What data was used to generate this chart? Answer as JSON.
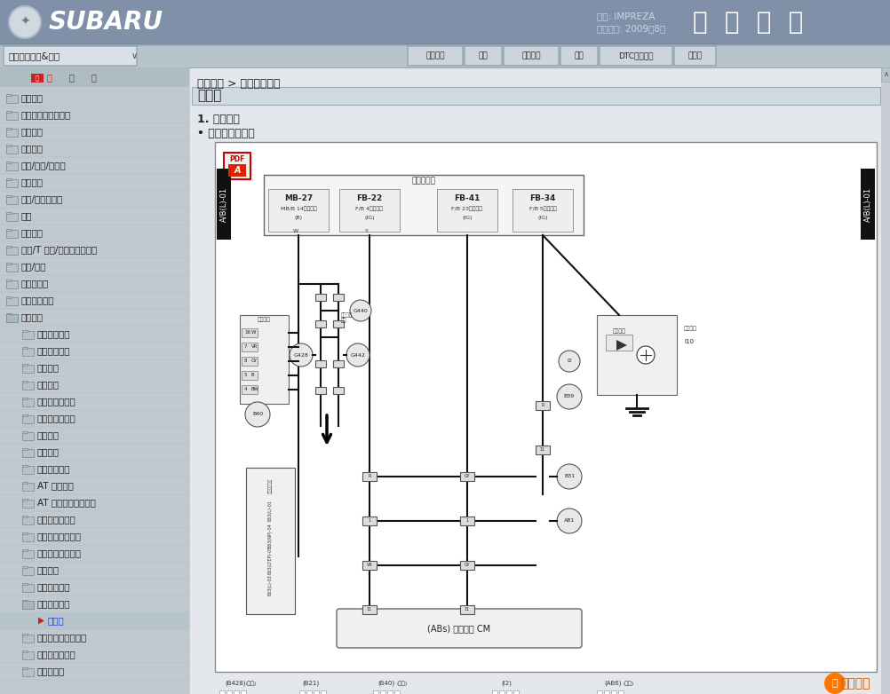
{
  "header_bg_top": "#7a8fa8",
  "header_bg_bot": "#5a6f88",
  "subaru_text": "SUBARU",
  "car_model_label": "车型: IMPREZA",
  "date_label": "发行日期: 2009年8月",
  "title_right": "维 修 手 册",
  "nav_top_label": "车身、驾驶室&配件",
  "nav_buttons": [
    "车型选择",
    "首页",
    "视图目录",
    "索引",
    "DTC编码检索",
    "布线图"
  ],
  "sidebar_items": [
    [
      "照明系统",
      0,
      false,
      false
    ],
    [
      "雨刮器和清洗器系统",
      0,
      false,
      false
    ],
    [
      "娱乐系统",
      0,
      false,
      false
    ],
    [
      "通讯系统",
      0,
      false,
      false
    ],
    [
      "玻璃/车窗/后视镜",
      0,
      false,
      false
    ],
    [
      "车身结构",
      0,
      false,
      false
    ],
    [
      "仪表/驾驶员信息",
      0,
      false,
      false
    ],
    [
      "座椅",
      0,
      false,
      false
    ],
    [
      "安全和锁",
      0,
      false,
      false
    ],
    [
      "天窗/T 型顶/活动顶（天窗）",
      0,
      false,
      false
    ],
    [
      "外饰/内饰",
      0,
      false,
      false
    ],
    [
      "外车身镶板",
      0,
      false,
      false
    ],
    [
      "巡航控制系统",
      0,
      false,
      false
    ],
    [
      "电路系统",
      0,
      true,
      false
    ],
    [
      "基本诊断程序",
      1,
      false,
      false
    ],
    [
      "工作注意事项",
      1,
      false,
      false
    ],
    [
      "电源电路",
      1,
      false,
      false
    ],
    [
      "接地电路",
      1,
      false,
      false
    ],
    [
      "发动机电气系统",
      1,
      false,
      false
    ],
    [
      "散热器风扇系统",
      1,
      false,
      false
    ],
    [
      "充电系统",
      1,
      false,
      false
    ],
    [
      "起动系统",
      1,
      false,
      false
    ],
    [
      "按钮启动系统",
      1,
      false,
      false
    ],
    [
      "AT 控制系统",
      1,
      false,
      false
    ],
    [
      "AT 换档锁止控制系统",
      1,
      false,
      false
    ],
    [
      "防抱死制动系统",
      1,
      false,
      false
    ],
    [
      "车辆动态控制系统",
      1,
      false,
      false
    ],
    [
      "电动动力转向系统",
      1,
      false,
      false
    ],
    [
      "空调系统",
      1,
      false,
      false
    ],
    [
      "电动座椅系统",
      1,
      false,
      false
    ],
    [
      "安全气囊系统",
      1,
      true,
      false
    ],
    [
      "布线图",
      2,
      false,
      true
    ],
    [
      "座椅安全带警告系统",
      1,
      false,
      false
    ],
    [
      "座椅加热器系统",
      1,
      false,
      false
    ],
    [
      "前大灯系统",
      1,
      false,
      false
    ]
  ],
  "breadcrumb": "电路系统 > 安全气囊系统",
  "section_title": "布线图",
  "subsection1": "1. 左驾车型",
  "subsection2": "• 汽油发动机车型"
}
